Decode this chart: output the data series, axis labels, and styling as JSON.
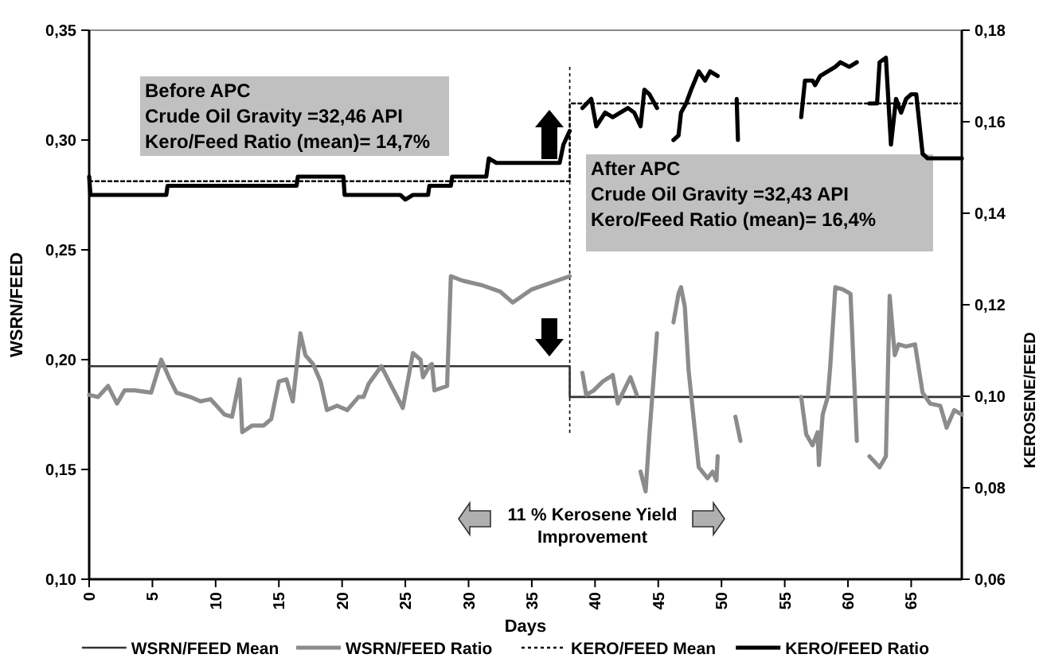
{
  "chart_data": {
    "type": "line",
    "xlabel": "Days",
    "ylabel": "WSRN/FEED",
    "y2label": "KEROSENE/FEED",
    "xlim": [
      0,
      69
    ],
    "xticks": [
      0,
      5,
      10,
      15,
      20,
      25,
      30,
      35,
      40,
      45,
      50,
      55,
      60,
      65
    ],
    "ylim": [
      0.1,
      0.35
    ],
    "yticks": [
      {
        "value": 0.1,
        "label": "0,10"
      },
      {
        "value": 0.15,
        "label": "0,15"
      },
      {
        "value": 0.2,
        "label": "0,20"
      },
      {
        "value": 0.25,
        "label": "0,25"
      },
      {
        "value": 0.3,
        "label": "0,30"
      },
      {
        "value": 0.35,
        "label": "0,35"
      }
    ],
    "y2lim": [
      0.06,
      0.18
    ],
    "y2ticks": [
      {
        "value": 0.06,
        "label": "0,06"
      },
      {
        "value": 0.08,
        "label": "0,08"
      },
      {
        "value": 0.1,
        "label": "0,10"
      },
      {
        "value": 0.12,
        "label": "0,12"
      },
      {
        "value": 0.14,
        "label": "0,14"
      },
      {
        "value": 0.16,
        "label": "0,16"
      },
      {
        "value": 0.18,
        "label": "0,18"
      }
    ],
    "grid": false,
    "legend": "bottom",
    "ref_lines": [
      {
        "axis": "x",
        "value": 38,
        "color": "#000000",
        "line_style": "dotted"
      }
    ],
    "annotations": [
      "Before APC\nCrude Oil Gravity =32,46 API\nKero/Feed Ratio (mean)= 14,7%",
      "After APC\nCrude Oil Gravity =32,43 API\nKero/Feed Ratio (mean)= 16,4%",
      "11 % Kerosene Yield\nImprovement"
    ],
    "series": [
      {
        "name": "WSRN/FEED Mean",
        "color": "#333333",
        "line_style": "solid",
        "x": [
          0,
          38,
          38,
          69
        ],
        "values": [
          0.197,
          0.197,
          0.183,
          0.183
        ]
      },
      {
        "name": "WSRN/FEED Ratio",
        "color": "#8c8c8c",
        "line_style": "solid",
        "x": [
          0,
          0.7,
          1.5,
          2.2,
          2.8,
          3.6,
          4.9,
          5.7,
          6.3,
          6.9,
          8.0,
          8.8,
          9.6,
          10.7,
          11.3,
          11.9,
          12.1,
          12.9,
          13.8,
          14.4,
          15.0,
          15.6,
          16.1,
          16.7,
          17.1,
          17.7,
          18.3,
          18.8,
          19.6,
          20.4,
          21.3,
          21.7,
          22.1,
          23.1,
          23.9,
          24.8,
          25.6,
          26.2,
          26.4,
          26.9,
          27.1,
          27.3,
          28.3,
          28.6,
          29.5,
          31,
          32.5,
          33.5,
          35,
          36.5,
          38,
          38.5,
          39.0,
          39.3,
          39.9,
          40.6,
          41.4,
          41.8,
          42.2,
          42.8,
          43.3,
          43.45,
          43.6,
          44.0,
          44.3,
          44.9,
          45.5,
          46.2,
          46.6,
          46.8,
          47.1,
          47.4,
          47.8,
          48.2,
          48.9,
          49.3,
          49.6,
          49.7,
          50.5,
          51.1,
          51.5,
          54,
          56.3,
          56.7,
          57.2,
          57.6,
          57.7,
          58.0,
          58.4,
          58.6,
          59.0,
          59.6,
          60.2,
          60.7,
          61.2,
          61.7,
          62.5,
          63.0,
          63.3,
          63.7,
          64.0,
          64.6,
          65.3,
          65.9,
          66.5,
          67.3,
          67.8,
          68.4,
          69
        ],
        "values": [
          0.184,
          0.183,
          0.188,
          0.18,
          0.186,
          0.186,
          0.185,
          0.2,
          0.192,
          0.185,
          0.183,
          0.181,
          0.182,
          0.175,
          0.174,
          0.191,
          0.167,
          0.17,
          0.17,
          0.173,
          0.19,
          0.191,
          0.181,
          0.212,
          0.202,
          0.198,
          0.19,
          0.177,
          0.179,
          0.177,
          0.183,
          0.183,
          0.189,
          0.197,
          0.188,
          0.178,
          0.203,
          0.2,
          0.192,
          0.197,
          0.198,
          0.186,
          0.188,
          0.238,
          0.236,
          0.234,
          0.231,
          0.226,
          0.232,
          0.235,
          0.238,
          null,
          0.194,
          0.184,
          0.186,
          0.19,
          0.193,
          0.18,
          0.185,
          0.192,
          0.184,
          null,
          0.149,
          0.14,
          0.166,
          0.212,
          null,
          0.217,
          0.23,
          0.233,
          0.224,
          0.195,
          0.173,
          0.151,
          0.146,
          0.149,
          0.145,
          0.156,
          null,
          0.174,
          0.163,
          null,
          0.183,
          0.166,
          0.161,
          0.167,
          0.152,
          0.175,
          0.183,
          0.197,
          0.233,
          0.232,
          0.23,
          0.163,
          null,
          0.156,
          0.151,
          0.156,
          0.229,
          0.202,
          0.207,
          0.206,
          0.207,
          0.185,
          0.18,
          0.179,
          0.169,
          0.177,
          0.175
        ]
      },
      {
        "name": "KERO/FEED Mean",
        "color": "#000000",
        "line_style": "dotted",
        "axis": "y2",
        "x": [
          0,
          38,
          38,
          69
        ],
        "values": [
          0.147,
          0.147,
          0.164,
          0.164
        ]
      },
      {
        "name": "KERO/FEED Ratio",
        "color": "#000000",
        "line_style": "solid",
        "axis": "y2",
        "x": [
          0,
          0.1,
          6.1,
          6.2,
          16.4,
          16.5,
          20.1,
          20.2,
          24.6,
          25,
          25.6,
          26.8,
          26.9,
          28.6,
          28.7,
          31.4,
          31.6,
          32.2,
          34.1,
          35.4,
          37.2,
          37.5,
          38,
          38.5,
          39.0,
          39.7,
          40.1,
          40.8,
          41.4,
          42.0,
          42.6,
          43.1,
          43.6,
          43.9,
          44.3,
          44.9,
          45.5,
          46.2,
          46.6,
          46.8,
          47.2,
          47.6,
          48.2,
          48.7,
          49.1,
          49.7,
          50.5,
          51.2,
          51.3,
          54,
          56.3,
          56.6,
          57.2,
          57.4,
          57.8,
          58.4,
          59.0,
          59.4,
          60.1,
          60.7,
          61.2,
          61.7,
          62.3,
          62.5,
          63.0,
          63.4,
          63.8,
          64.2,
          64.6,
          65.0,
          65.4,
          65.9,
          66.3,
          69
        ],
        "values": [
          0.148,
          0.144,
          0.144,
          0.146,
          0.146,
          0.148,
          0.148,
          0.144,
          0.144,
          0.143,
          0.144,
          0.144,
          0.146,
          0.146,
          0.148,
          0.148,
          0.152,
          0.151,
          0.151,
          0.151,
          0.151,
          0.155,
          0.158,
          null,
          0.163,
          0.165,
          0.159,
          0.162,
          0.161,
          0.162,
          0.163,
          0.162,
          0.159,
          0.167,
          0.166,
          0.163,
          null,
          0.156,
          0.157,
          0.162,
          0.164,
          0.167,
          0.171,
          0.169,
          0.171,
          0.17,
          null,
          0.165,
          0.156,
          null,
          0.161,
          0.169,
          0.169,
          0.168,
          0.17,
          0.171,
          0.172,
          0.173,
          0.172,
          0.173,
          null,
          0.164,
          0.164,
          0.173,
          0.174,
          0.155,
          0.165,
          0.162,
          0.165,
          0.166,
          0.166,
          0.153,
          0.152,
          0.152
        ]
      }
    ]
  }
}
